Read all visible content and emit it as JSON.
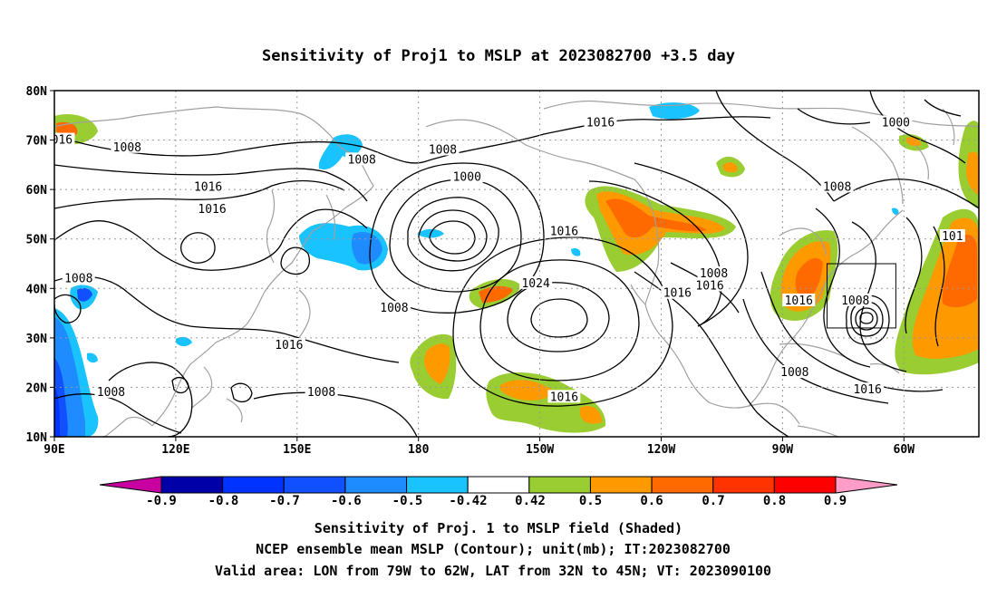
{
  "title": "Sensitivity of Proj1 to MSLP at 2023082700 +3.5 day",
  "map": {
    "lat_ticks": [
      "80N",
      "70N",
      "60N",
      "50N",
      "40N",
      "30N",
      "20N",
      "10N"
    ],
    "lon_ticks": [
      "90E",
      "120E",
      "150E",
      "180",
      "150W",
      "120W",
      "90W",
      "60W"
    ],
    "contour_labels": [
      {
        "text": "1016",
        "lon": 91,
        "lat": 70
      },
      {
        "text": "1008",
        "lon": 108,
        "lat": 68.5
      },
      {
        "text": "1008",
        "lon": 166,
        "lat": 66
      },
      {
        "text": "1008",
        "lon": -174,
        "lat": 68
      },
      {
        "text": "1000",
        "lon": -168,
        "lat": 62.5
      },
      {
        "text": "1016",
        "lon": -135,
        "lat": 73.5
      },
      {
        "text": "1000",
        "lon": -62,
        "lat": 73.5
      },
      {
        "text": "1016",
        "lon": 128,
        "lat": 60.5
      },
      {
        "text": "1016",
        "lon": 129,
        "lat": 56
      },
      {
        "text": "1016",
        "lon": -144,
        "lat": 51.5
      },
      {
        "text": "1008",
        "lon": -76.5,
        "lat": 60.5
      },
      {
        "text": "101",
        "lon": -48,
        "lat": 50.5
      },
      {
        "text": "1008",
        "lon": 96,
        "lat": 42
      },
      {
        "text": "1008",
        "lon": 174,
        "lat": 36
      },
      {
        "text": "1024",
        "lon": -151,
        "lat": 41
      },
      {
        "text": "1008",
        "lon": -107,
        "lat": 43
      },
      {
        "text": "1016",
        "lon": -108,
        "lat": 40.5
      },
      {
        "text": "1016",
        "lon": -116,
        "lat": 39
      },
      {
        "text": "1016",
        "lon": -86,
        "lat": 37.5
      },
      {
        "text": "1008",
        "lon": -72,
        "lat": 37.5
      },
      {
        "text": "1016",
        "lon": 148,
        "lat": 28.5
      },
      {
        "text": "1008",
        "lon": 104,
        "lat": 19
      },
      {
        "text": "1008",
        "lon": 156,
        "lat": 19
      },
      {
        "text": "1016",
        "lon": -144,
        "lat": 18
      },
      {
        "text": "1008",
        "lon": -87,
        "lat": 23
      },
      {
        "text": "1016",
        "lon": -69,
        "lat": 19.5
      }
    ],
    "valid_box": {
      "lon": [
        -79,
        -62
      ],
      "lat": [
        32,
        45
      ]
    }
  },
  "colorbar": {
    "labels": [
      "-0.9",
      "-0.8",
      "-0.7",
      "-0.6",
      "-0.5",
      "-0.42",
      "0.42",
      "0.5",
      "0.6",
      "0.7",
      "0.8",
      "0.9"
    ],
    "colors": [
      "#0000a8",
      "#0033ff",
      "#1050ff",
      "#1e8cff",
      "#19c3ff",
      "#ffffff",
      "#9acd32",
      "#ff9900",
      "#ff6a00",
      "#ff3300",
      "#ff0000"
    ],
    "low_end": "#c800a0",
    "high_end": "#ff9cc8"
  },
  "captions": [
    "Sensitivity of Proj. 1 to MSLP field (Shaded)",
    "NCEP ensemble mean MSLP (Contour); unit(mb); IT:2023082700",
    "Valid area: LON from 79W to 62W, LAT from 32N to 45N; VT: 2023090100"
  ]
}
